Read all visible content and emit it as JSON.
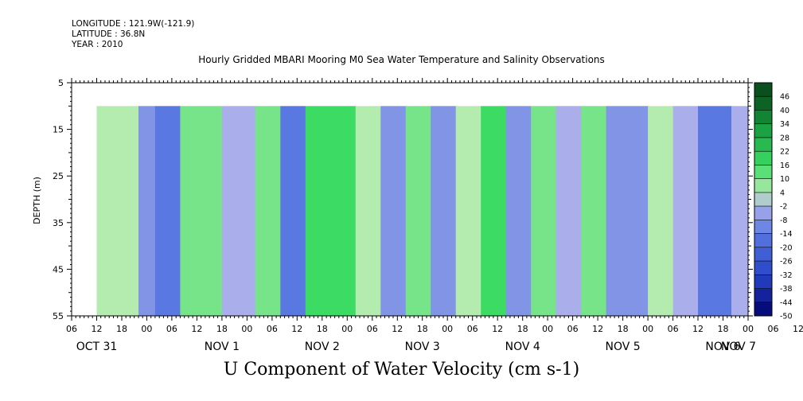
{
  "header": {
    "longitude": "LONGITUDE : 121.9W(-121.9)",
    "latitude": "LATITUDE : 36.8N",
    "year": "YEAR : 2010"
  },
  "chart_data": {
    "type": "heatmap",
    "title": "Hourly Gridded MBARI Mooring M0 Sea Water Temperature and Salinity Observations",
    "xlabel": "U Component of Water Velocity (cm s-1)",
    "ylabel": "DEPTH (m)",
    "ylim": [
      5,
      55
    ],
    "y_inverted": true,
    "y_ticks": [
      5,
      15,
      25,
      35,
      45,
      55
    ],
    "data_depth_range": [
      10,
      55
    ],
    "x_hour_range": [
      6,
      168
    ],
    "data_hour_range": [
      12,
      168
    ],
    "x_hour_ticks": [
      "06",
      "12",
      "18",
      "00",
      "06",
      "12",
      "18",
      "00",
      "06",
      "12",
      "18",
      "00",
      "06",
      "12",
      "18",
      "00",
      "06",
      "12",
      "18",
      "00",
      "06",
      "12",
      "18",
      "00",
      "06",
      "12",
      "18",
      "00",
      "06",
      "12",
      "18",
      "00",
      "06"
    ],
    "x_day_labels": [
      "OCT 31",
      "NOV  1",
      "NOV  2",
      "NOV  3",
      "NOV  4",
      "NOV  5",
      "NOV  6",
      "NOV  7"
    ],
    "colorbar": {
      "levels": [
        -50,
        -44,
        -38,
        -32,
        -26,
        -20,
        -14,
        -8,
        -2,
        4,
        10,
        16,
        22,
        28,
        34,
        40,
        46
      ],
      "labels": [
        "46",
        "40",
        "34",
        "28",
        "22",
        "16",
        "10",
        "4",
        "-2",
        "-8",
        "-14",
        "-20",
        "-26",
        "-32",
        "-38",
        "-44",
        "-50"
      ]
    },
    "dominant_range": [
      -14,
      16
    ],
    "bands": [
      {
        "hour_start": 12,
        "hour_end": 22,
        "value": 4
      },
      {
        "hour_start": 22,
        "hour_end": 26,
        "value": -8
      },
      {
        "hour_start": 26,
        "hour_end": 32,
        "value": -14
      },
      {
        "hour_start": 32,
        "hour_end": 42,
        "value": 10
      },
      {
        "hour_start": 42,
        "hour_end": 50,
        "value": -2
      },
      {
        "hour_start": 50,
        "hour_end": 56,
        "value": 10
      },
      {
        "hour_start": 56,
        "hour_end": 62,
        "value": -14
      },
      {
        "hour_start": 62,
        "hour_end": 74,
        "value": 16
      },
      {
        "hour_start": 74,
        "hour_end": 80,
        "value": 4
      },
      {
        "hour_start": 80,
        "hour_end": 86,
        "value": -8
      },
      {
        "hour_start": 86,
        "hour_end": 92,
        "value": 10
      },
      {
        "hour_start": 92,
        "hour_end": 98,
        "value": -8
      },
      {
        "hour_start": 98,
        "hour_end": 104,
        "value": 4
      },
      {
        "hour_start": 104,
        "hour_end": 110,
        "value": 16
      },
      {
        "hour_start": 110,
        "hour_end": 116,
        "value": -8
      },
      {
        "hour_start": 116,
        "hour_end": 122,
        "value": 10
      },
      {
        "hour_start": 122,
        "hour_end": 128,
        "value": -2
      },
      {
        "hour_start": 128,
        "hour_end": 134,
        "value": 10
      },
      {
        "hour_start": 134,
        "hour_end": 144,
        "value": -8
      },
      {
        "hour_start": 144,
        "hour_end": 150,
        "value": 4
      },
      {
        "hour_start": 150,
        "hour_end": 156,
        "value": -2
      },
      {
        "hour_start": 156,
        "hour_end": 164,
        "value": -14
      },
      {
        "hour_start": 164,
        "hour_end": 168,
        "value": -2
      }
    ]
  }
}
